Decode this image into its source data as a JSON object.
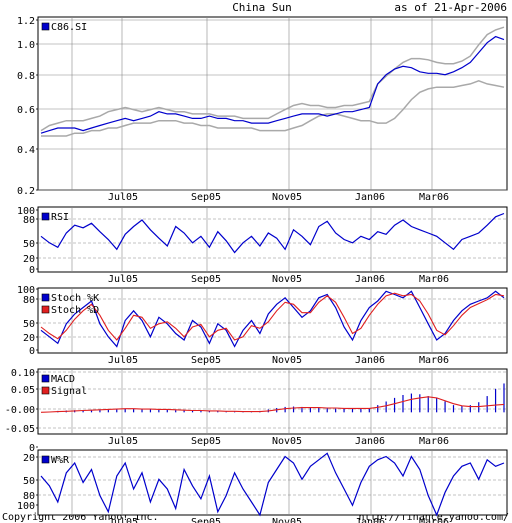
{
  "header": {
    "title": "China Sun",
    "as_of": "as of 21-Apr-2006"
  },
  "footer": {
    "copyright": "Copyright 2006 Yahoo! Inc.",
    "url": "http://finance.yahoo.com/"
  },
  "colors": {
    "price": "#0000cc",
    "band": "#a9a9a9",
    "signal": "#e02020",
    "grid": "#888888",
    "bg": "#ffffff"
  },
  "x_tick_labels": [
    "Jul05",
    "Sep05",
    "Nov05",
    "Jan06",
    "Mar06"
  ],
  "chart_data": [
    {
      "type": "line",
      "id": "price",
      "legend": [
        "C86.SI"
      ],
      "yticks": [
        "1.2",
        "1.0",
        "0.8",
        "0.6",
        "0.4",
        "0.2"
      ],
      "ylim": [
        0.2,
        1.2
      ],
      "scale": "log",
      "series": [
        {
          "name": "C86.SI",
          "role": "price",
          "values": [
            0.36,
            0.37,
            0.38,
            0.38,
            0.38,
            0.37,
            0.38,
            0.39,
            0.4,
            0.41,
            0.42,
            0.41,
            0.42,
            0.43,
            0.45,
            0.44,
            0.44,
            0.43,
            0.42,
            0.42,
            0.43,
            0.42,
            0.42,
            0.41,
            0.41,
            0.4,
            0.4,
            0.4,
            0.41,
            0.42,
            0.43,
            0.44,
            0.44,
            0.44,
            0.43,
            0.44,
            0.45,
            0.45,
            0.46,
            0.47,
            0.6,
            0.66,
            0.7,
            0.72,
            0.71,
            0.68,
            0.67,
            0.67,
            0.66,
            0.68,
            0.71,
            0.75,
            0.83,
            0.92,
            0.98,
            0.95
          ]
        },
        {
          "name": "",
          "role": "band",
          "values": [
            0.37,
            0.39,
            0.4,
            0.41,
            0.41,
            0.41,
            0.42,
            0.43,
            0.45,
            0.46,
            0.47,
            0.46,
            0.45,
            0.46,
            0.47,
            0.46,
            0.45,
            0.45,
            0.44,
            0.44,
            0.44,
            0.43,
            0.43,
            0.43,
            0.42,
            0.42,
            0.42,
            0.42,
            0.44,
            0.46,
            0.48,
            0.49,
            0.48,
            0.48,
            0.47,
            0.47,
            0.48,
            0.48,
            0.49,
            0.5,
            0.6,
            0.65,
            0.7,
            0.75,
            0.78,
            0.78,
            0.77,
            0.75,
            0.74,
            0.74,
            0.76,
            0.8,
            0.9,
            1.0,
            1.05,
            1.08
          ]
        },
        {
          "name": "",
          "role": "band",
          "values": [
            0.35,
            0.35,
            0.35,
            0.35,
            0.36,
            0.36,
            0.37,
            0.37,
            0.38,
            0.38,
            0.39,
            0.4,
            0.4,
            0.4,
            0.41,
            0.41,
            0.41,
            0.4,
            0.4,
            0.39,
            0.39,
            0.38,
            0.38,
            0.38,
            0.38,
            0.38,
            0.37,
            0.37,
            0.37,
            0.37,
            0.38,
            0.39,
            0.41,
            0.43,
            0.44,
            0.44,
            0.43,
            0.42,
            0.41,
            0.41,
            0.4,
            0.4,
            0.42,
            0.46,
            0.51,
            0.55,
            0.57,
            0.58,
            0.58,
            0.58,
            0.59,
            0.6,
            0.62,
            0.6,
            0.59,
            0.58
          ]
        }
      ]
    },
    {
      "type": "line",
      "id": "rsi",
      "legend": [
        "RSI"
      ],
      "yticks": [
        "100",
        "80",
        "50",
        "20",
        "0"
      ],
      "ylim": [
        0,
        100
      ],
      "series": [
        {
          "name": "RSI",
          "values": [
            55,
            45,
            38,
            60,
            72,
            68,
            75,
            62,
            50,
            35,
            58,
            70,
            80,
            65,
            52,
            40,
            70,
            60,
            45,
            55,
            38,
            62,
            48,
            30,
            45,
            55,
            40,
            60,
            52,
            35,
            65,
            55,
            42,
            70,
            78,
            60,
            50,
            45,
            55,
            50,
            62,
            58,
            72,
            80,
            70,
            65,
            60,
            55,
            45,
            35,
            50,
            55,
            60,
            72,
            85,
            90
          ]
        }
      ]
    },
    {
      "type": "line",
      "id": "stoch",
      "legend": [
        "Stoch %K",
        "Stoch %D"
      ],
      "yticks": [
        "100",
        "80",
        "50",
        "20",
        "0"
      ],
      "ylim": [
        0,
        100
      ],
      "series": [
        {
          "name": "Stoch %K",
          "values": [
            35,
            25,
            15,
            45,
            60,
            70,
            80,
            45,
            25,
            10,
            50,
            65,
            50,
            25,
            55,
            45,
            30,
            20,
            50,
            40,
            15,
            45,
            35,
            10,
            35,
            50,
            30,
            60,
            75,
            85,
            70,
            55,
            65,
            85,
            90,
            70,
            40,
            20,
            50,
            70,
            80,
            95,
            90,
            85,
            95,
            70,
            45,
            20,
            30,
            50,
            65,
            75,
            80,
            85,
            95,
            85
          ]
        },
        {
          "name": "Stoch %D",
          "values": [
            40,
            30,
            22,
            35,
            52,
            65,
            75,
            58,
            35,
            20,
            38,
            58,
            55,
            38,
            45,
            48,
            38,
            25,
            40,
            44,
            25,
            35,
            38,
            20,
            25,
            42,
            38,
            48,
            65,
            78,
            75,
            62,
            62,
            78,
            88,
            78,
            55,
            30,
            38,
            58,
            75,
            88,
            92,
            88,
            90,
            80,
            60,
            35,
            28,
            42,
            58,
            70,
            76,
            82,
            90,
            88
          ]
        }
      ]
    },
    {
      "type": "bar",
      "id": "macd",
      "legend": [
        "MACD",
        "Signal"
      ],
      "yticks": [
        "0.10",
        "0.05",
        "-0.00",
        "-0.05"
      ],
      "ylim": [
        -0.06,
        0.12
      ],
      "series": [
        {
          "name": "MACD",
          "values": [
            0.0,
            0.002,
            0.004,
            0.005,
            0.006,
            0.006,
            0.007,
            0.008,
            0.009,
            0.01,
            0.01,
            0.009,
            0.008,
            0.008,
            0.008,
            0.007,
            0.006,
            0.005,
            0.004,
            0.004,
            0.003,
            0.003,
            0.002,
            0.002,
            0.001,
            0.002,
            0.004,
            0.008,
            0.012,
            0.015,
            0.016,
            0.015,
            0.013,
            0.012,
            0.011,
            0.01,
            0.01,
            0.01,
            0.011,
            0.012,
            0.02,
            0.03,
            0.04,
            0.048,
            0.052,
            0.05,
            0.045,
            0.04,
            0.03,
            0.02,
            0.018,
            0.02,
            0.028,
            0.045,
            0.065,
            0.08
          ]
        },
        {
          "name": "Signal",
          "values": [
            0.0,
            0.001,
            0.002,
            0.003,
            0.004,
            0.005,
            0.006,
            0.007,
            0.008,
            0.009,
            0.01,
            0.01,
            0.009,
            0.009,
            0.008,
            0.008,
            0.007,
            0.006,
            0.005,
            0.005,
            0.004,
            0.004,
            0.003,
            0.003,
            0.002,
            0.002,
            0.002,
            0.004,
            0.007,
            0.01,
            0.012,
            0.013,
            0.013,
            0.013,
            0.012,
            0.012,
            0.011,
            0.011,
            0.011,
            0.011,
            0.014,
            0.018,
            0.024,
            0.03,
            0.036,
            0.04,
            0.043,
            0.04,
            0.032,
            0.024,
            0.018,
            0.016,
            0.016,
            0.018,
            0.02,
            0.022
          ]
        }
      ]
    },
    {
      "type": "line",
      "id": "wr",
      "legend": [
        "W%R"
      ],
      "yticks": [
        "0",
        "20",
        "50",
        "80",
        "100"
      ],
      "ylim": [
        0,
        100
      ],
      "inverted": true,
      "series": [
        {
          "name": "W%R",
          "values": [
            40,
            55,
            80,
            35,
            20,
            50,
            30,
            70,
            95,
            40,
            20,
            60,
            35,
            80,
            45,
            60,
            90,
            30,
            55,
            75,
            40,
            95,
            70,
            35,
            60,
            80,
            100,
            50,
            30,
            10,
            20,
            45,
            25,
            15,
            5,
            35,
            60,
            85,
            50,
            25,
            15,
            10,
            20,
            40,
            10,
            30,
            70,
            100,
            65,
            40,
            25,
            20,
            45,
            15,
            25,
            20
          ]
        }
      ]
    }
  ]
}
